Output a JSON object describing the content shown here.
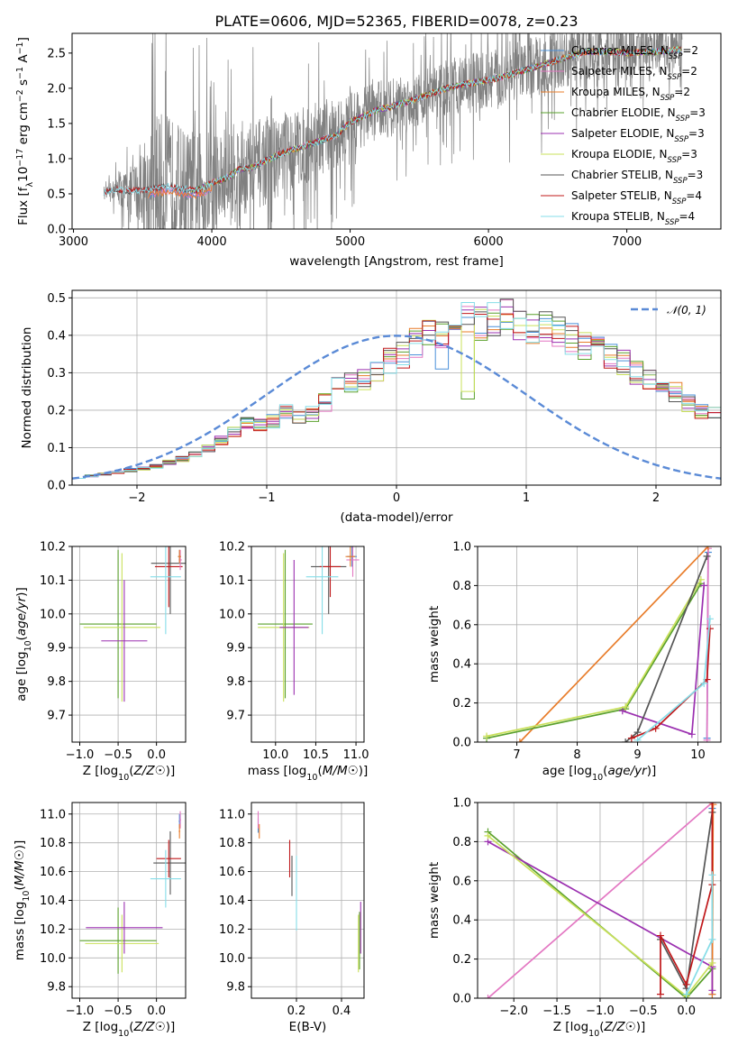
{
  "colors": {
    "Chabrier MILES": "#4a90d9",
    "Salpeter MILES": "#e377c2",
    "Kroupa MILES": "#e87c2a",
    "Chabrier ELODIE": "#5aa02c",
    "Salpeter ELODIE": "#9b30b0",
    "Kroupa ELODIE": "#c9e05a",
    "Chabrier STELIB": "#555555",
    "Salpeter STELIB": "#c0181a",
    "Kroupa STELIB": "#86dde8",
    "data": "#808080",
    "normal": "#5a8ad6",
    "grid": "#b0b0b0"
  },
  "chart_data": [
    {
      "id": "spectrum",
      "type": "line",
      "title": "PLATE=0606, MJD=52365, FIBERID=0078, z=0.23",
      "xlabel": "wavelength [Angstrom, rest frame]",
      "ylabel": "Flux [f_λ10^-17 erg cm^-2 s^-1 A^-1]",
      "xlim": [
        2990,
        7680
      ],
      "ylim": [
        0,
        2.78
      ],
      "xticks": [
        "3000",
        "4000",
        "5000",
        "6000",
        "7000"
      ],
      "yticks": [
        "0.0",
        "0.5",
        "1.0",
        "1.5",
        "2.0",
        "2.5"
      ],
      "grid": false,
      "legend_position": "upper right",
      "legend": [
        {
          "model": "Chabrier MILES",
          "label": "Chabrier MILES, N_SSP=2"
        },
        {
          "model": "Salpeter MILES",
          "label": "Salpeter MILES, N_SSP=2"
        },
        {
          "model": "Kroupa MILES",
          "label": "Kroupa MILES, N_SSP=2"
        },
        {
          "model": "Chabrier ELODIE",
          "label": "Chabrier ELODIE, N_SSP=3"
        },
        {
          "model": "Salpeter ELODIE",
          "label": "Salpeter ELODIE, N_SSP=3"
        },
        {
          "model": "Kroupa ELODIE",
          "label": "Kroupa ELODIE, N_SSP=3"
        },
        {
          "model": "Chabrier STELIB",
          "label": "Chabrier STELIB, N_SSP=3"
        },
        {
          "model": "Salpeter STELIB",
          "label": "Salpeter STELIB, N_SSP=4"
        },
        {
          "model": "Kroupa STELIB",
          "label": "Kroupa STELIB, N_SSP=4"
        }
      ],
      "model_continuum": [
        [
          3220,
          0.52
        ],
        [
          3300,
          0.56
        ],
        [
          3400,
          0.54
        ],
        [
          3500,
          0.55
        ],
        [
          3600,
          0.58
        ],
        [
          3700,
          0.62
        ],
        [
          3800,
          0.57
        ],
        [
          3900,
          0.55
        ],
        [
          4000,
          0.66
        ],
        [
          4100,
          0.72
        ],
        [
          4200,
          0.85
        ],
        [
          4300,
          0.88
        ],
        [
          4400,
          0.98
        ],
        [
          4500,
          1.07
        ],
        [
          4600,
          1.14
        ],
        [
          4700,
          1.2
        ],
        [
          4800,
          1.26
        ],
        [
          4900,
          1.33
        ],
        [
          5000,
          1.52
        ],
        [
          5100,
          1.6
        ],
        [
          5200,
          1.7
        ],
        [
          5300,
          1.74
        ],
        [
          5400,
          1.8
        ],
        [
          5500,
          1.86
        ],
        [
          5600,
          1.94
        ],
        [
          5700,
          2.0
        ],
        [
          5800,
          2.05
        ],
        [
          5900,
          2.08
        ],
        [
          6000,
          2.12
        ],
        [
          6100,
          2.16
        ],
        [
          6200,
          2.22
        ],
        [
          6300,
          2.28
        ],
        [
          6400,
          2.34
        ],
        [
          6500,
          2.4
        ],
        [
          6600,
          2.46
        ],
        [
          6700,
          2.52
        ],
        [
          6800,
          2.52
        ],
        [
          6900,
          2.52
        ],
        [
          7000,
          2.5
        ],
        [
          7100,
          2.51
        ],
        [
          7200,
          2.52
        ],
        [
          7300,
          2.53
        ],
        [
          7400,
          2.55
        ]
      ],
      "data_noise_amplitude": [
        [
          3220,
          0.05
        ],
        [
          3500,
          0.9
        ],
        [
          3600,
          2.0
        ],
        [
          3800,
          1.6
        ],
        [
          4000,
          1.4
        ],
        [
          4500,
          1.1
        ],
        [
          5000,
          0.8
        ],
        [
          5500,
          0.7
        ],
        [
          6000,
          0.8
        ],
        [
          6500,
          0.8
        ],
        [
          7000,
          0.7
        ],
        [
          7400,
          0.6
        ]
      ]
    },
    {
      "id": "residuals",
      "type": "histogram",
      "xlabel": "(data-model)/error",
      "ylabel": "Normed distribution",
      "xlim": [
        -2.5,
        2.5
      ],
      "ylim": [
        0,
        0.52
      ],
      "xticks": [
        "−2",
        "−1",
        "0",
        "1",
        "2"
      ],
      "yticks": [
        "0.0",
        "0.1",
        "0.2",
        "0.3",
        "0.4",
        "0.5"
      ],
      "grid": true,
      "legend_position": "upper right",
      "legend": [
        {
          "label": "𝒩(0, 1)",
          "style": "dashed"
        }
      ],
      "bin_edges_start": -2.5,
      "bin_width": 0.1,
      "base_heights": [
        0.02,
        0.025,
        0.03,
        0.035,
        0.04,
        0.045,
        0.05,
        0.06,
        0.07,
        0.08,
        0.1,
        0.12,
        0.14,
        0.17,
        0.16,
        0.17,
        0.2,
        0.18,
        0.19,
        0.22,
        0.26,
        0.27,
        0.28,
        0.3,
        0.33,
        0.35,
        0.38,
        0.4,
        0.41,
        0.42,
        0.44,
        0.43,
        0.44,
        0.45,
        0.43,
        0.42,
        0.43,
        0.41,
        0.39,
        0.37,
        0.36,
        0.34,
        0.33,
        0.3,
        0.28,
        0.26,
        0.25,
        0.22,
        0.2,
        0.19,
        0.16,
        0.15,
        0.13,
        0.12,
        0.1,
        0.09,
        0.08,
        0.07,
        0.06,
        0.05,
        0.05,
        0.04,
        0.035,
        0.03,
        0.03,
        0.025,
        0.02,
        0.02,
        0.02,
        0.02
      ]
    },
    {
      "id": "age-vs-z",
      "type": "scatter",
      "xlabel": "Z [log10(Z/Z☉)]",
      "ylabel": "age  [log10(age/yr)]",
      "xlim": [
        -1.1,
        0.38
      ],
      "ylim": [
        9.62,
        10.2
      ],
      "xticks": [
        "−1.0",
        "−0.5",
        "0.0"
      ],
      "yticks": [
        "9.7",
        "9.8",
        "9.9",
        "10.0",
        "10.1",
        "10.2"
      ],
      "grid": true,
      "points": [
        {
          "model": "Chabrier ELODIE",
          "x": -0.5,
          "xerr": 0.5,
          "y": 9.97,
          "yerr": 0.22
        },
        {
          "model": "Kroupa ELODIE",
          "x": -0.45,
          "xerr": 0.5,
          "y": 9.96,
          "yerr": 0.22
        },
        {
          "model": "Salpeter ELODIE",
          "x": -0.42,
          "xerr": 0.3,
          "y": 9.92,
          "yerr": 0.18
        },
        {
          "model": "Chabrier STELIB",
          "x": 0.18,
          "xerr": 0.25,
          "y": 10.15,
          "yerr": 0.15
        },
        {
          "model": "Salpeter STELIB",
          "x": 0.16,
          "xerr": 0.18,
          "y": 10.14,
          "yerr": 0.12
        },
        {
          "model": "Kroupa STELIB",
          "x": 0.12,
          "xerr": 0.2,
          "y": 10.11,
          "yerr": 0.17
        },
        {
          "model": "Chabrier MILES",
          "x": 0.3,
          "xerr": 0.02,
          "y": 10.17,
          "yerr": 0.02
        },
        {
          "model": "Salpeter MILES",
          "x": 0.31,
          "xerr": 0.02,
          "y": 10.16,
          "yerr": 0.03
        },
        {
          "model": "Kroupa MILES",
          "x": 0.3,
          "xerr": 0.02,
          "y": 10.17,
          "yerr": 0.02
        }
      ]
    },
    {
      "id": "age-vs-mass",
      "type": "scatter",
      "xlabel": "mass [log10(M/M☉)]",
      "ylabel": "",
      "xlim": [
        9.7,
        11.1
      ],
      "ylim": [
        9.62,
        10.2
      ],
      "xticks": [
        "10.0",
        "10.5",
        "11.0"
      ],
      "yticks": [
        "9.7",
        "9.8",
        "9.9",
        "10.0",
        "10.1",
        "10.2"
      ],
      "grid": true,
      "points": [
        {
          "model": "Chabrier ELODIE",
          "x": 10.12,
          "xerr": 0.34,
          "y": 9.97,
          "yerr": 0.22
        },
        {
          "model": "Kroupa ELODIE",
          "x": 10.1,
          "xerr": 0.32,
          "y": 9.96,
          "yerr": 0.22
        },
        {
          "model": "Salpeter ELODIE",
          "x": 10.23,
          "xerr": 0.18,
          "y": 9.96,
          "yerr": 0.2
        },
        {
          "model": "Chabrier STELIB",
          "x": 10.66,
          "xerr": 0.22,
          "y": 10.14,
          "yerr": 0.14
        },
        {
          "model": "Salpeter STELIB",
          "x": 10.68,
          "xerr": 0.13,
          "y": 10.14,
          "yerr": 0.09
        },
        {
          "model": "Kroupa STELIB",
          "x": 10.58,
          "xerr": 0.2,
          "y": 10.11,
          "yerr": 0.17
        },
        {
          "model": "Chabrier MILES",
          "x": 10.95,
          "xerr": 0.06,
          "y": 10.17,
          "yerr": 0.03
        },
        {
          "model": "Salpeter MILES",
          "x": 10.96,
          "xerr": 0.08,
          "y": 10.16,
          "yerr": 0.05
        },
        {
          "model": "Kroupa MILES",
          "x": 10.93,
          "xerr": 0.06,
          "y": 10.17,
          "yerr": 0.03
        }
      ]
    },
    {
      "id": "mass-weight-vs-age",
      "type": "line",
      "xlabel": "age  [log10(age/yr)]",
      "ylabel": "mass weight",
      "xlim": [
        6.35,
        10.38
      ],
      "ylim": [
        0,
        1.0
      ],
      "xticks": [
        "7",
        "8",
        "9",
        "10"
      ],
      "yticks": [
        "0.0",
        "0.2",
        "0.4",
        "0.6",
        "0.8",
        "1.0"
      ],
      "grid": true,
      "series": [
        {
          "model": "Chabrier MILES",
          "x": [
            10.15,
            10.17
          ],
          "y": [
            0.02,
            0.97
          ]
        },
        {
          "model": "Salpeter MILES",
          "x": [
            10.15,
            10.17
          ],
          "y": [
            0.01,
            0.99
          ]
        },
        {
          "model": "Kroupa MILES",
          "x": [
            7.05,
            10.17
          ],
          "y": [
            0.0,
            1.0
          ]
        },
        {
          "model": "Chabrier ELODIE",
          "x": [
            6.5,
            8.8,
            10.05
          ],
          "y": [
            0.02,
            0.17,
            0.81
          ]
        },
        {
          "model": "Salpeter ELODIE",
          "x": [
            8.75,
            9.9,
            10.1
          ],
          "y": [
            0.16,
            0.04,
            0.8
          ]
        },
        {
          "model": "Kroupa ELODIE",
          "x": [
            6.5,
            8.8,
            10.05
          ],
          "y": [
            0.03,
            0.18,
            0.83
          ]
        },
        {
          "model": "Chabrier STELIB",
          "x": [
            8.8,
            9.0,
            10.15
          ],
          "y": [
            0.0,
            0.05,
            0.95
          ]
        },
        {
          "model": "Salpeter STELIB",
          "x": [
            8.9,
            9.3,
            10.15,
            10.2
          ],
          "y": [
            0.02,
            0.07,
            0.32,
            0.58
          ]
        },
        {
          "model": "Kroupa STELIB",
          "x": [
            9.0,
            10.1,
            10.2
          ],
          "y": [
            0.01,
            0.3,
            0.63
          ]
        }
      ]
    },
    {
      "id": "mass-vs-z",
      "type": "scatter",
      "xlabel": "Z [log10(Z/Z☉)]",
      "ylabel": "mass [log10(M/M☉)]",
      "xlim": [
        -1.1,
        0.38
      ],
      "ylim": [
        9.72,
        11.08
      ],
      "xticks": [
        "−1.0",
        "−0.5",
        "0.0"
      ],
      "yticks": [
        "9.8",
        "10.0",
        "10.2",
        "10.4",
        "10.6",
        "10.8",
        "11.0"
      ],
      "grid": true,
      "points": [
        {
          "model": "Chabrier ELODIE",
          "x": -0.5,
          "xerr": 0.5,
          "y": 10.12,
          "yerr": 0.23
        },
        {
          "model": "Kroupa ELODIE",
          "x": -0.45,
          "xerr": 0.48,
          "y": 10.1,
          "yerr": 0.2
        },
        {
          "model": "Salpeter ELODIE",
          "x": -0.42,
          "xerr": 0.5,
          "y": 10.21,
          "yerr": 0.18
        },
        {
          "model": "Chabrier STELIB",
          "x": 0.18,
          "xerr": 0.22,
          "y": 10.66,
          "yerr": 0.22
        },
        {
          "model": "Salpeter STELIB",
          "x": 0.16,
          "xerr": 0.16,
          "y": 10.69,
          "yerr": 0.13
        },
        {
          "model": "Kroupa STELIB",
          "x": 0.12,
          "xerr": 0.2,
          "y": 10.55,
          "yerr": 0.2
        },
        {
          "model": "Chabrier MILES",
          "x": 0.3,
          "xerr": 0.01,
          "y": 10.95,
          "yerr": 0.05
        },
        {
          "model": "Salpeter MILES",
          "x": 0.31,
          "xerr": 0.01,
          "y": 10.96,
          "yerr": 0.06
        },
        {
          "model": "Kroupa MILES",
          "x": 0.3,
          "xerr": 0.01,
          "y": 10.88,
          "yerr": 0.05
        }
      ]
    },
    {
      "id": "mass-vs-ebv",
      "type": "scatter",
      "xlabel": "E(B-V)",
      "ylabel": "",
      "xlim": [
        0.0,
        0.5
      ],
      "ylim": [
        9.72,
        11.08
      ],
      "xticks": [
        "0.2",
        "0.4"
      ],
      "yticks": [
        "9.8",
        "10.0",
        "10.2",
        "10.4",
        "10.6",
        "10.8",
        "11.0"
      ],
      "grid": true,
      "points": [
        {
          "model": "Chabrier MILES",
          "x": 0.03,
          "xerr": 0.0,
          "y": 10.92,
          "yerr": 0.05
        },
        {
          "model": "Salpeter MILES",
          "x": 0.03,
          "xerr": 0.0,
          "y": 10.96,
          "yerr": 0.06
        },
        {
          "model": "Kroupa MILES",
          "x": 0.035,
          "xerr": 0.0,
          "y": 10.88,
          "yerr": 0.05
        },
        {
          "model": "Salpeter STELIB",
          "x": 0.17,
          "xerr": 0.0,
          "y": 10.69,
          "yerr": 0.13
        },
        {
          "model": "Chabrier STELIB",
          "x": 0.18,
          "xerr": 0.0,
          "y": 10.57,
          "yerr": 0.14
        },
        {
          "model": "Kroupa STELIB",
          "x": 0.2,
          "xerr": 0.0,
          "y": 10.45,
          "yerr": 0.26
        },
        {
          "model": "Chabrier ELODIE",
          "x": 0.48,
          "xerr": 0.0,
          "y": 10.12,
          "yerr": 0.2
        },
        {
          "model": "Salpeter ELODIE",
          "x": 0.485,
          "xerr": 0.0,
          "y": 10.21,
          "yerr": 0.18
        },
        {
          "model": "Kroupa ELODIE",
          "x": 0.475,
          "xerr": 0.0,
          "y": 10.1,
          "yerr": 0.2
        }
      ]
    },
    {
      "id": "mass-weight-vs-z",
      "type": "line",
      "xlabel": "Z [log10(Z/Z☉)]",
      "ylabel": "mass weight",
      "xlim": [
        -2.42,
        0.4
      ],
      "ylim": [
        0,
        1.0
      ],
      "xticks": [
        "−2.0",
        "−1.5",
        "−1.0",
        "−0.5",
        "0.0"
      ],
      "yticks": [
        "0.0",
        "0.2",
        "0.4",
        "0.6",
        "0.8",
        "1.0"
      ],
      "grid": true,
      "series": [
        {
          "model": "Chabrier MILES",
          "x": [
            0.3,
            0.3
          ],
          "y": [
            0.02,
            0.97
          ]
        },
        {
          "model": "Salpeter MILES",
          "x": [
            -2.3,
            0.3
          ],
          "y": [
            0.0,
            1.0
          ]
        },
        {
          "model": "Kroupa MILES",
          "x": [
            0.3,
            0.31
          ],
          "y": [
            0.02,
            0.99
          ]
        },
        {
          "model": "Chabrier ELODIE",
          "x": [
            -2.3,
            0.0,
            0.3
          ],
          "y": [
            0.85,
            0.0,
            0.15
          ]
        },
        {
          "model": "Salpeter ELODIE",
          "x": [
            -2.3,
            0.3,
            0.3
          ],
          "y": [
            0.8,
            0.16,
            0.04
          ]
        },
        {
          "model": "Kroupa ELODIE",
          "x": [
            -2.3,
            0.0,
            0.3
          ],
          "y": [
            0.83,
            0.01,
            0.18
          ]
        },
        {
          "model": "Chabrier STELIB",
          "x": [
            -0.3,
            0.0,
            0.3
          ],
          "y": [
            0.3,
            0.05,
            0.95
          ]
        },
        {
          "model": "Salpeter STELIB",
          "x": [
            -0.3,
            -0.3,
            0.0,
            0.3,
            0.3
          ],
          "y": [
            0.02,
            0.32,
            0.07,
            0.58,
            1.0
          ]
        },
        {
          "model": "Kroupa STELIB",
          "x": [
            0.0,
            0.3,
            0.3
          ],
          "y": [
            0.02,
            0.3,
            0.63
          ]
        }
      ]
    }
  ]
}
